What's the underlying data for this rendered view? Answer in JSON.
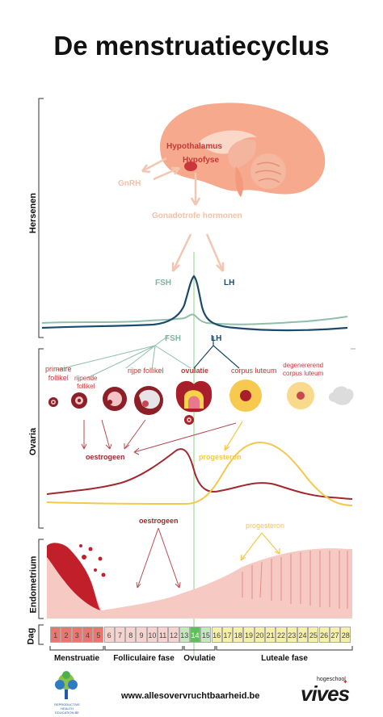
{
  "title": "De menstruatiecyclus",
  "sections": {
    "hersenen": "Hersenen",
    "ovaria": "Ovaria",
    "endometrium": "Endometrium",
    "dag": "Dag"
  },
  "brain": {
    "hypothalamus": "Hypothalamus",
    "hypofyse": "Hypofyse",
    "gnrh": "GnRH",
    "gonadotrofe": "Gonadotrofe hormonen",
    "fsh": "FSH",
    "lh": "LH"
  },
  "lower_hormones": {
    "fsh": "FSH",
    "lh": "LH"
  },
  "follicles": {
    "primaire": "primaire\nfollikel",
    "rijpende": "rijpende\nfollikel",
    "rijpe": "rijpe follikel",
    "ovulatie": "ovulatie",
    "corpus_luteum": "corpus luteum",
    "degenererend": "degenererend\ncorpus luteum"
  },
  "ovary_hormones": {
    "oestrogeen": "oestrogeen",
    "progesteron": "progesteron"
  },
  "endometrium_labels": {
    "oestrogeen": "oestrogeen",
    "progesteron": "progesteron"
  },
  "days": [
    "1",
    "2",
    "3",
    "4",
    "5",
    "6",
    "7",
    "8",
    "9",
    "10",
    "11",
    "12",
    "13",
    "14",
    "15",
    "16",
    "17",
    "18",
    "19",
    "20",
    "21",
    "22",
    "23",
    "24",
    "25",
    "26",
    "27",
    "28"
  ],
  "phases": {
    "menstruatie": "Menstruatie",
    "folliculaire": "Folliculaire fase",
    "ovulatie": "Ovulatie",
    "luteale": "Luteale fase"
  },
  "footer": {
    "url": "www.allesovervruchtbaarheid.be",
    "brand_small": "hogeschool",
    "brand": "vives",
    "logo_text": "REPRODUCTIVE HEALTH EDUCATION.BE"
  },
  "colors": {
    "menstruation": "#e8776f",
    "follicular": "#f6d3cf",
    "ovulation": "#9fd49a",
    "luteal": "#f6f0a8",
    "estrogen": "#a2282d",
    "progesterone": "#f4c84b",
    "fsh": "#7fb59e",
    "lh": "#1b4a6b"
  }
}
